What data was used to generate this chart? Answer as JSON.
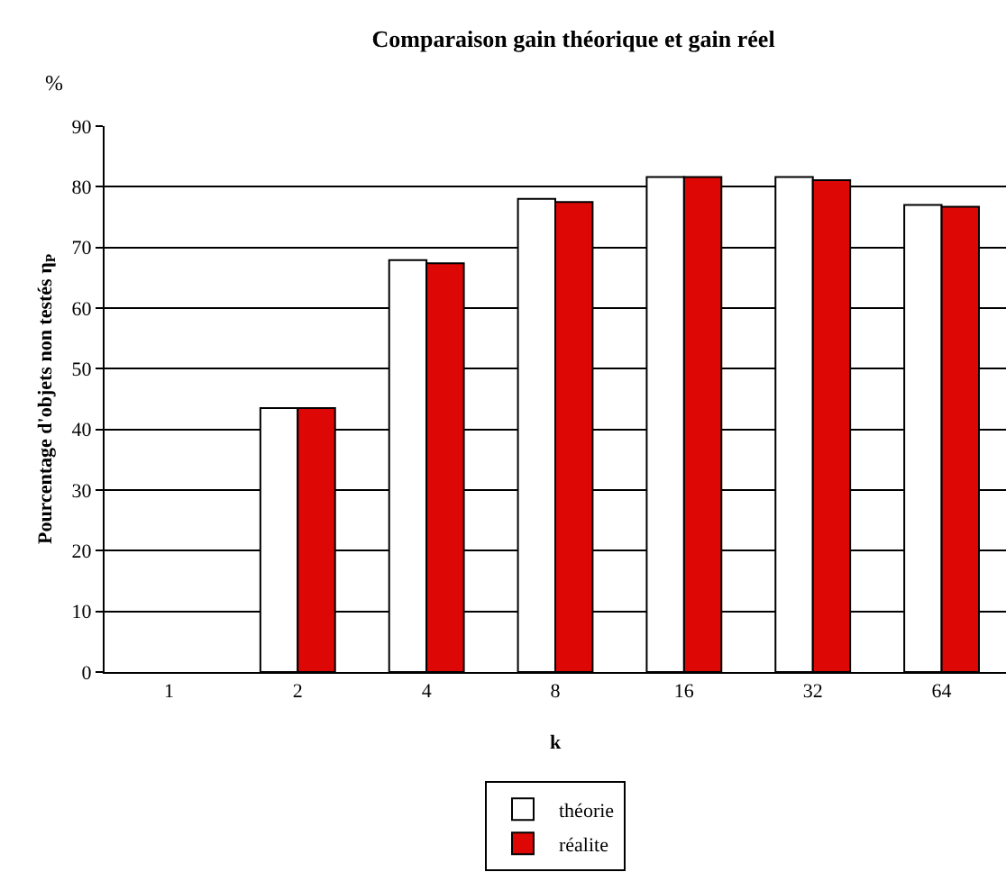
{
  "chart_data": {
    "type": "bar",
    "title": "Comparaison gain théorique et gain réel",
    "xlabel": "k",
    "ylabel": "Pourcentage d'objets non testés η$_{P}$",
    "annotations": [
      "%"
    ],
    "categories": [
      "1",
      "2",
      "4",
      "8",
      "16",
      "32",
      "64"
    ],
    "series": [
      {
        "name": "théorie",
        "color": "#ffffff",
        "values": [
          null,
          43.5,
          67.9,
          78.0,
          81.6,
          81.6,
          77.0
        ]
      },
      {
        "name": "réalite",
        "color": "#dd0806",
        "values": [
          null,
          43.5,
          67.4,
          77.5,
          81.6,
          81.1,
          76.7
        ]
      }
    ],
    "ylim": [
      0,
      90
    ],
    "yticks": [
      0,
      10,
      20,
      30,
      40,
      50,
      60,
      70,
      80,
      90
    ],
    "grid": "y",
    "legend": "bottom"
  }
}
